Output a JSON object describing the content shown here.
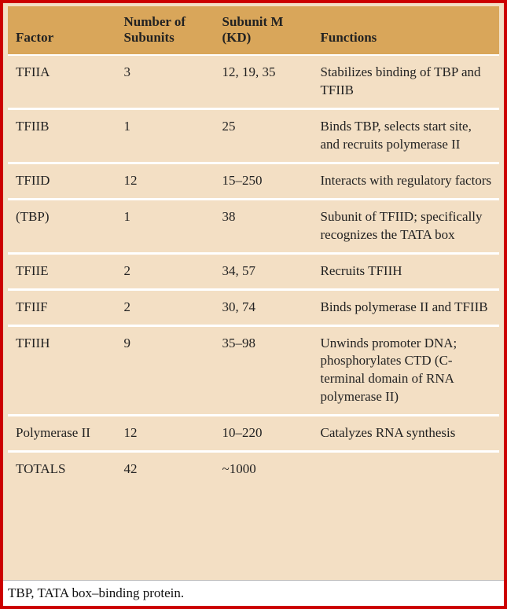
{
  "colors": {
    "frame_border": "#cc0000",
    "header_bg": "#d9a65a",
    "row_bg": "#f3dfc4",
    "row_separator": "#ffffff",
    "text": "#222222",
    "footer_bg": "#ffffff"
  },
  "typography": {
    "font_family": "Georgia, serif",
    "header_fontsize_pt": 13,
    "header_fontweight": "bold",
    "cell_fontsize_pt": 13,
    "footer_fontsize_pt": 13
  },
  "table": {
    "type": "table",
    "column_widths_pct": [
      22,
      20,
      20,
      38
    ],
    "columns": [
      {
        "label": "Factor"
      },
      {
        "label": "Number of Subunits"
      },
      {
        "label": "Subunit M (KD)"
      },
      {
        "label": "Functions"
      }
    ],
    "rows": [
      {
        "factor": "TFIIA",
        "subunits": "3",
        "subunit_m": "12, 19, 35",
        "functions": "Stabilizes binding of TBP and TFIIB"
      },
      {
        "factor": "TFIIB",
        "subunits": "1",
        "subunit_m": "25",
        "functions": "Binds TBP, selects start site, and recruits polymerase II"
      },
      {
        "factor": "TFIID",
        "subunits": "12",
        "subunit_m": "15–250",
        "functions": "Interacts with regulatory  factors"
      },
      {
        "factor": "(TBP)",
        "subunits": "1",
        "subunit_m": "38",
        "functions": "Subunit of TFIID; specifically recognizes the TATA box"
      },
      {
        "factor": "TFIIE",
        "subunits": "2",
        "subunit_m": "34, 57",
        "functions": "Recruits TFIIH"
      },
      {
        "factor": "TFIIF",
        "subunits": "2",
        "subunit_m": "30, 74",
        "functions": "Binds polymerase II and TFIIB"
      },
      {
        "factor": "TFIIH",
        "subunits": "9",
        "subunit_m": "35–98",
        "functions": "Unwinds promoter DNA; phosphorylates CTD (C-terminal domain of RNA polymerase II)"
      },
      {
        "factor": "Polymerase II",
        "subunits": "12",
        "subunit_m": "10–220",
        "functions": "Catalyzes RNA synthesis"
      },
      {
        "factor": "TOTALS",
        "subunits": "42",
        "subunit_m": "~1000",
        "functions": ""
      }
    ]
  },
  "footer_note": "TBP, TATA box–binding protein."
}
